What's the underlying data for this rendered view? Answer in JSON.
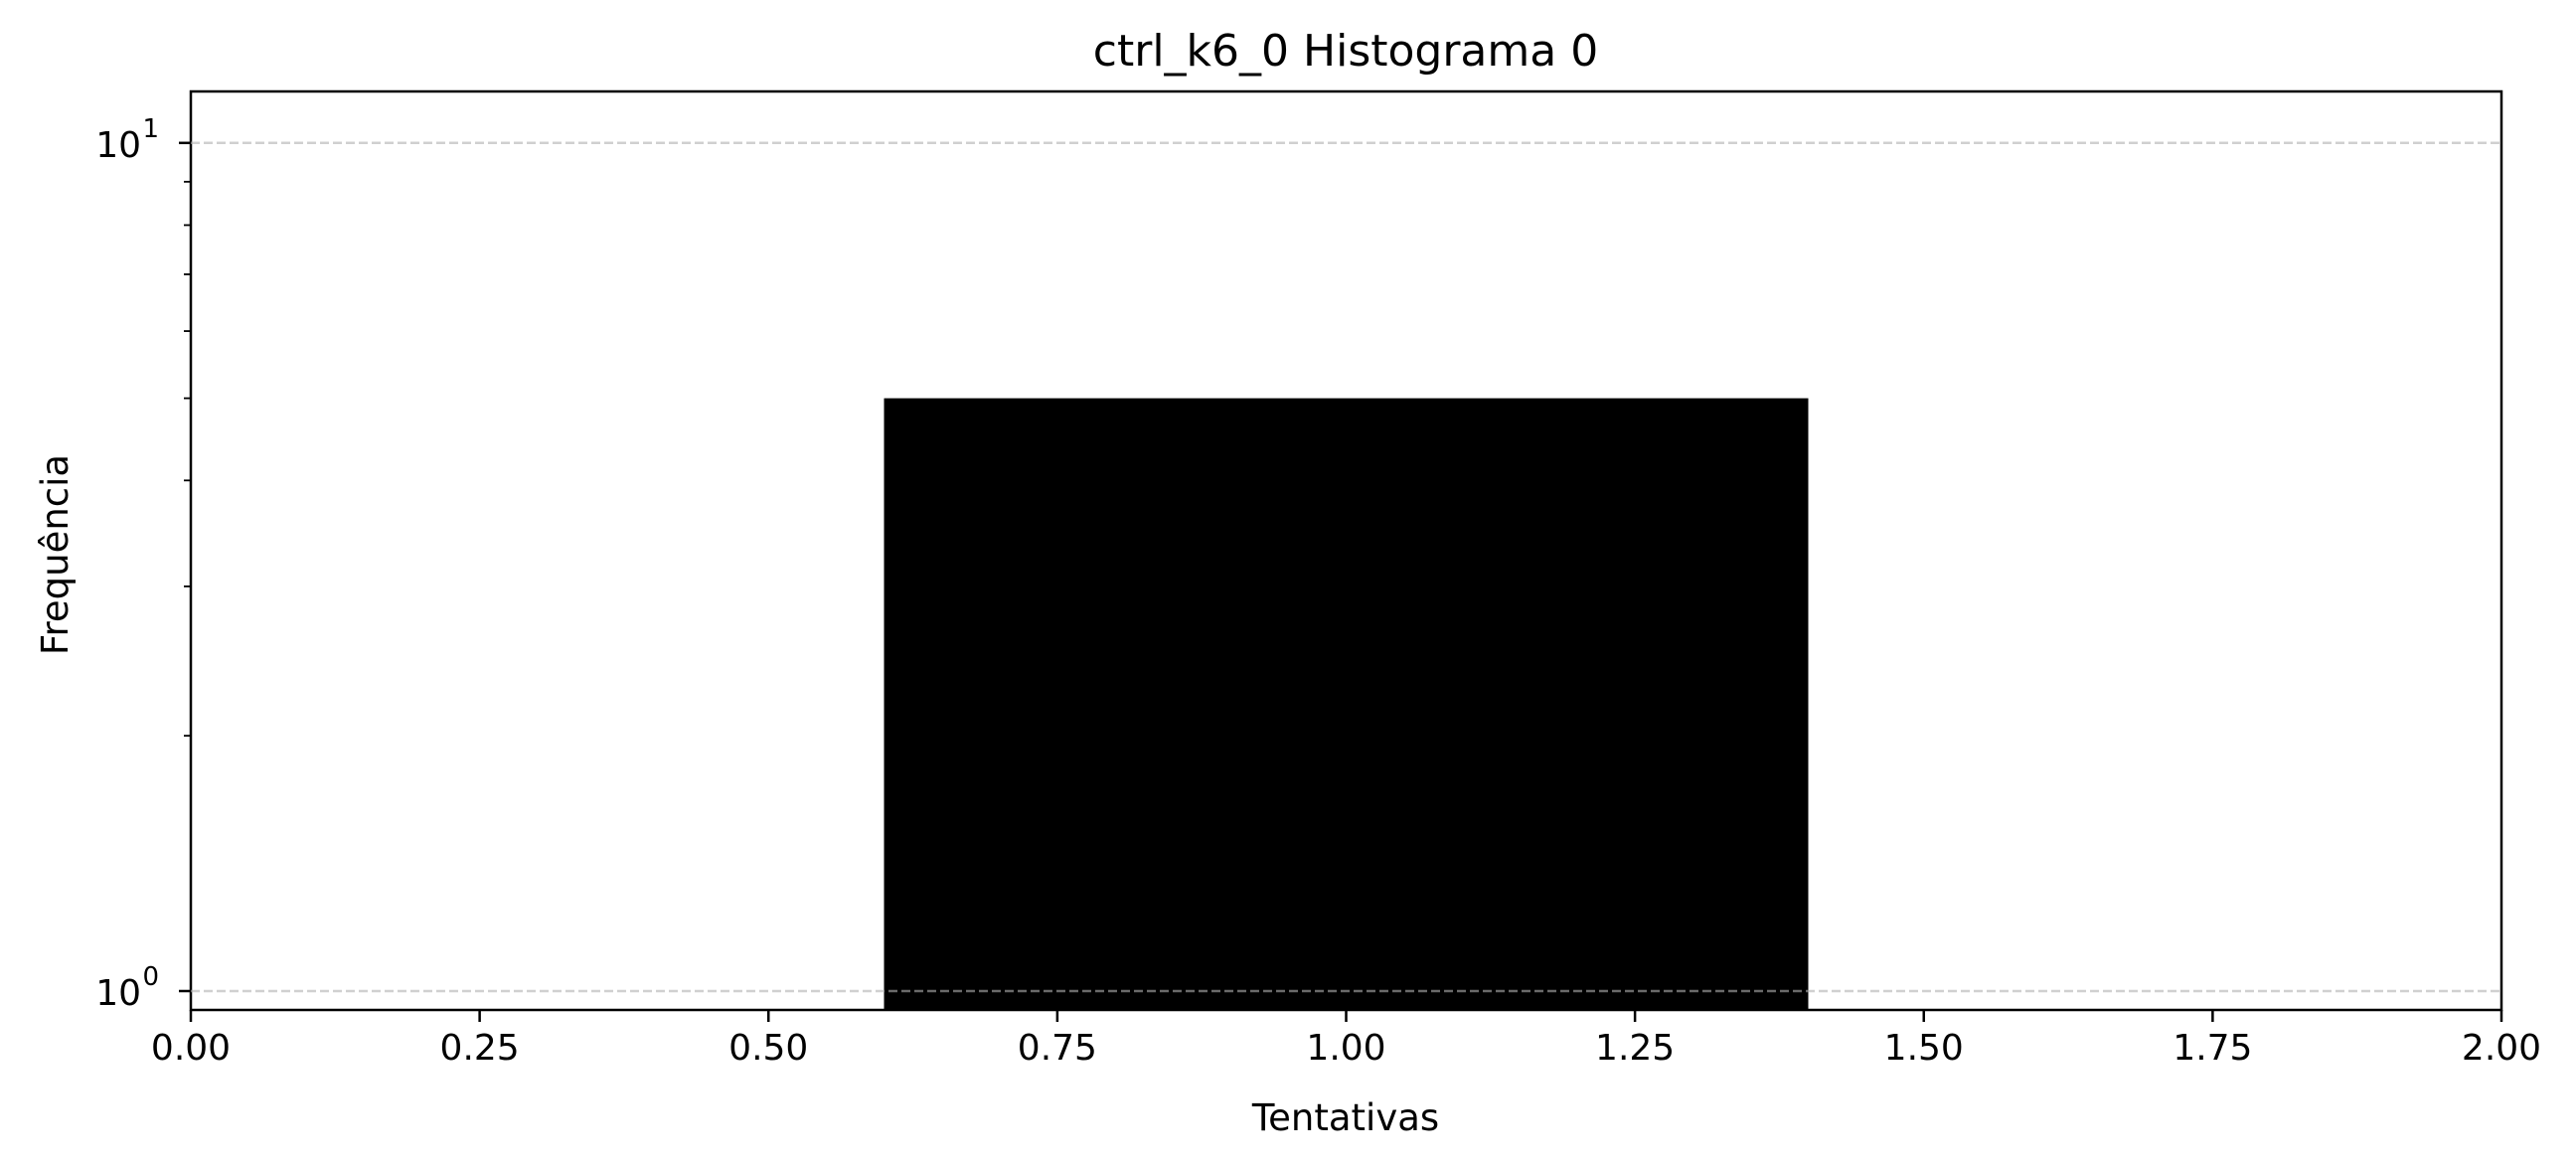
{
  "chart_data": {
    "type": "bar",
    "title": "ctrl_k6_0 Histograma 0",
    "xlabel": "Tentativas",
    "ylabel": "Frequência",
    "xlim": [
      0,
      2
    ],
    "ylim": [
      0.95,
      11.5
    ],
    "yscale": "log",
    "grid": "y-axis, dashed, light gray",
    "bar_color": "#000000",
    "bars": [
      {
        "x_start": 0.6,
        "x_end": 1.4,
        "value": 5
      }
    ],
    "x_ticks": [
      {
        "value": 0.0,
        "label": "0.00"
      },
      {
        "value": 0.25,
        "label": "0.25"
      },
      {
        "value": 0.5,
        "label": "0.50"
      },
      {
        "value": 0.75,
        "label": "0.75"
      },
      {
        "value": 1.0,
        "label": "1.00"
      },
      {
        "value": 1.25,
        "label": "1.25"
      },
      {
        "value": 1.5,
        "label": "1.50"
      },
      {
        "value": 1.75,
        "label": "1.75"
      },
      {
        "value": 2.0,
        "label": "2.00"
      }
    ],
    "y_ticks": [
      {
        "value": 1,
        "base": "10",
        "exponent": "0"
      },
      {
        "value": 10,
        "base": "10",
        "exponent": "1"
      }
    ],
    "y_minor_ticks": [
      2,
      3,
      4,
      5,
      6,
      7,
      8,
      9
    ]
  }
}
